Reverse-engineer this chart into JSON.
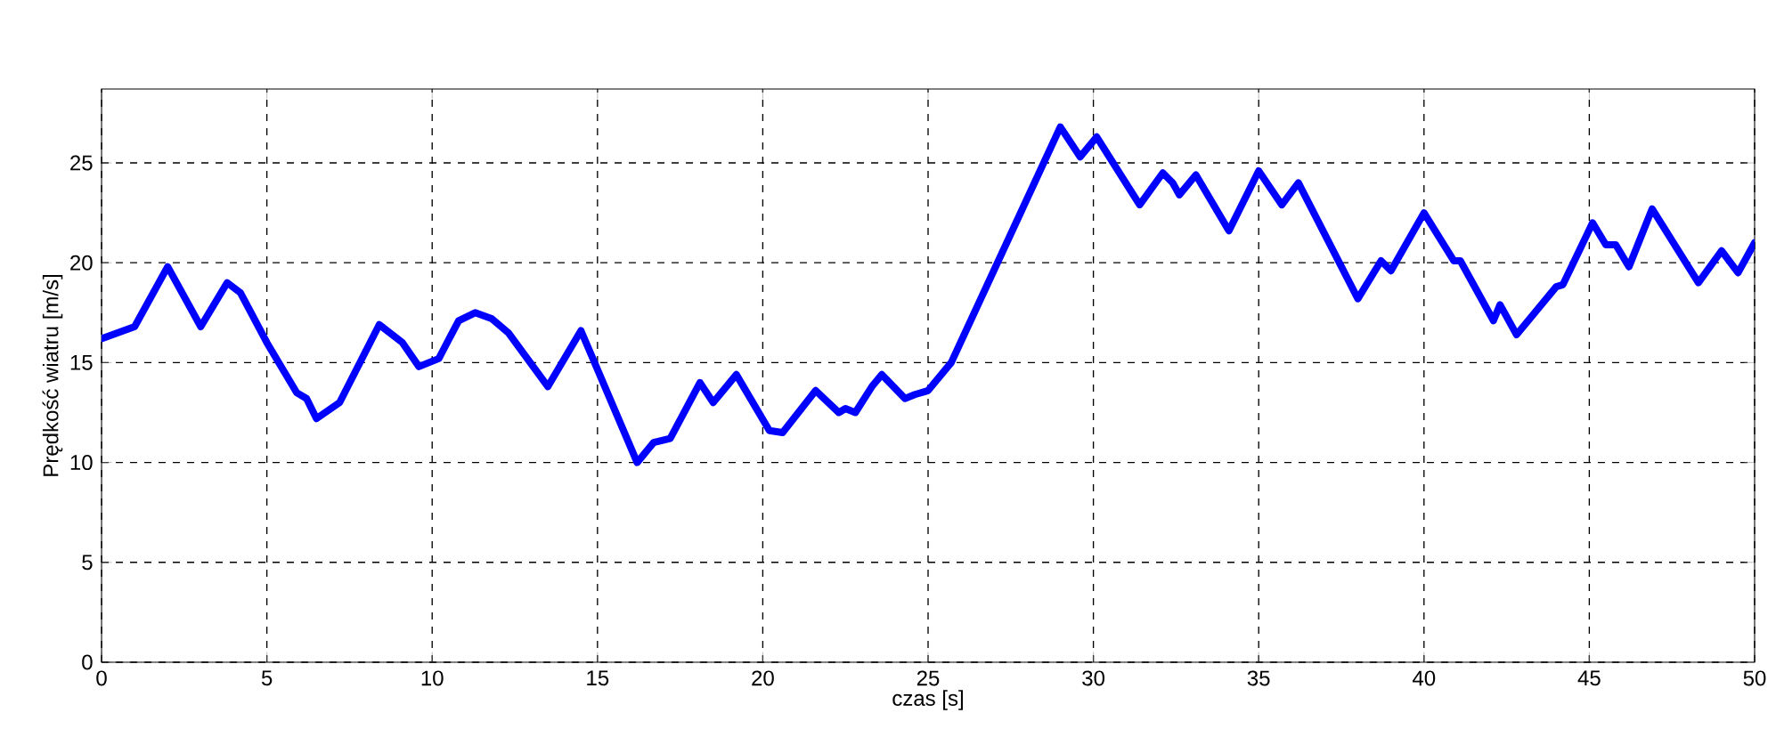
{
  "chart_data": {
    "type": "line",
    "xlabel": "czas [s]",
    "ylabel": "Prędkość wiatru [m/s]",
    "xlim": [
      0,
      50
    ],
    "ylim": [
      0,
      28.7
    ],
    "xticks": [
      0,
      5,
      10,
      15,
      20,
      25,
      30,
      35,
      40,
      45,
      50
    ],
    "yticks": [
      0,
      5,
      10,
      15,
      20,
      25
    ],
    "grid": true,
    "marker": "none",
    "line_style": "solid",
    "x": [
      0,
      1,
      2,
      3,
      3.8,
      4.2,
      5,
      5.9,
      6.2,
      6.5,
      7.2,
      8.4,
      9.1,
      9.6,
      10.2,
      10.8,
      11.3,
      11.8,
      12.3,
      13.5,
      14.5,
      16.2,
      16.7,
      17.2,
      18.1,
      18.5,
      19.2,
      20.2,
      20.6,
      21.6,
      22.3,
      22.5,
      22.8,
      23.3,
      23.6,
      24.3,
      24.6,
      25,
      25.7,
      29,
      29.6,
      30.1,
      31.4,
      32.1,
      32.4,
      32.6,
      33.1,
      34.1,
      35,
      35.7,
      36.2,
      38,
      38.7,
      39,
      40,
      40.9,
      41.1,
      42.1,
      42.3,
      42.8,
      44,
      44.2,
      45.1,
      45.5,
      45.8,
      46.2,
      46.9,
      48.3,
      49,
      49.5,
      50
    ],
    "series": [
      {
        "color": "#0000ff",
        "values": [
          16.2,
          16.8,
          19.8,
          16.8,
          19.0,
          18.5,
          16.0,
          13.5,
          13.2,
          12.2,
          13.0,
          16.9,
          16.0,
          14.8,
          15.2,
          17.1,
          17.5,
          17.2,
          16.5,
          13.8,
          16.6,
          10.0,
          11.0,
          11.2,
          14.0,
          13.0,
          14.4,
          11.6,
          11.5,
          13.6,
          12.5,
          12.7,
          12.5,
          13.8,
          14.4,
          13.2,
          13.4,
          13.6,
          15.0,
          26.8,
          25.3,
          26.3,
          22.9,
          24.5,
          24.0,
          23.4,
          24.4,
          21.6,
          24.6,
          22.9,
          24.0,
          18.2,
          20.1,
          19.6,
          22.5,
          20.1,
          20.1,
          17.1,
          17.9,
          16.4,
          18.8,
          18.9,
          22.0,
          20.9,
          20.9,
          19.8,
          22.7,
          19.0,
          20.6,
          19.5,
          21.0
        ]
      }
    ]
  }
}
